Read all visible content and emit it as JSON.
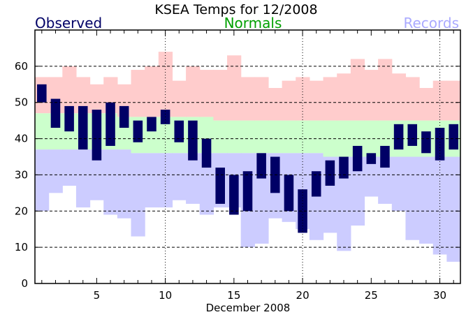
{
  "chart_data": {
    "type": "bar",
    "title": "KSEA Temps for 12/2008",
    "xlabel": "December 2008",
    "ylabel": "",
    "legend": [
      {
        "label": "Observed",
        "color": "#000066"
      },
      {
        "label": "Normals",
        "color": "#00a000"
      },
      {
        "label": "Records",
        "color": "#aaaaff"
      }
    ],
    "colors": {
      "observed": "#000066",
      "normals_band": "#ccffcc",
      "record_high_band": "#ffcccc",
      "record_low_band": "#ccccff"
    },
    "xlim": [
      0.5,
      31.5
    ],
    "ylim": [
      0,
      70
    ],
    "x_ticks": [
      5,
      10,
      15,
      20,
      25,
      30
    ],
    "y_ticks": [
      0,
      10,
      20,
      30,
      40,
      50,
      60
    ],
    "days": [
      1,
      2,
      3,
      4,
      5,
      6,
      7,
      8,
      9,
      10,
      11,
      12,
      13,
      14,
      15,
      16,
      17,
      18,
      19,
      20,
      21,
      22,
      23,
      24,
      25,
      26,
      27,
      28,
      29,
      30,
      31
    ],
    "observed_high": [
      55,
      51,
      49,
      49,
      48,
      50,
      49,
      45,
      46,
      48,
      45,
      45,
      40,
      32,
      30,
      31,
      36,
      35,
      30,
      26,
      31,
      34,
      35,
      38,
      36,
      38,
      44,
      44,
      42,
      43,
      44
    ],
    "observed_low": [
      50,
      43,
      42,
      37,
      34,
      38,
      43,
      39,
      42,
      44,
      39,
      34,
      32,
      22,
      19,
      20,
      29,
      25,
      20,
      14,
      24,
      27,
      29,
      31,
      33,
      32,
      37,
      38,
      36,
      34,
      37
    ],
    "normal_high": [
      47,
      47,
      47,
      47,
      47,
      47,
      46,
      46,
      46,
      46,
      46,
      46,
      46,
      45,
      45,
      45,
      45,
      45,
      45,
      45,
      45,
      45,
      45,
      45,
      45,
      45,
      45,
      45,
      45,
      45,
      45
    ],
    "normal_low": [
      37,
      37,
      37,
      37,
      37,
      37,
      37,
      36,
      36,
      36,
      36,
      36,
      36,
      36,
      36,
      36,
      36,
      36,
      36,
      36,
      36,
      35,
      35,
      35,
      35,
      35,
      35,
      35,
      35,
      35,
      35
    ],
    "record_high": [
      57,
      57,
      60,
      57,
      55,
      57,
      55,
      59,
      60,
      64,
      56,
      60,
      59,
      59,
      63,
      57,
      57,
      54,
      56,
      57,
      56,
      57,
      58,
      62,
      59,
      62,
      58,
      57,
      54,
      56,
      56
    ],
    "record_low": [
      20,
      25,
      27,
      21,
      23,
      19,
      18,
      13,
      21,
      21,
      23,
      22,
      19,
      21,
      21,
      10,
      11,
      18,
      17,
      15,
      12,
      14,
      9,
      16,
      24,
      22,
      20,
      12,
      11,
      8,
      6
    ],
    "grid": {
      "horizontal": "dashed",
      "vertical": "dotted",
      "vertical_at": [
        10,
        20,
        30
      ]
    }
  }
}
